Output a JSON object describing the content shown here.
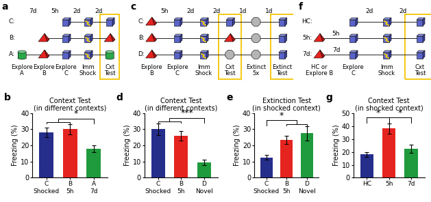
{
  "diagrams": [
    {
      "panel": "a",
      "rows": [
        {
          "label": "C:"
        },
        {
          "label": "B:"
        },
        {
          "label": "A:"
        }
      ],
      "intervals": [
        "7d",
        "5h",
        "2d",
        "2d"
      ],
      "steps": [
        "Explore\nA",
        "Explore\nB",
        "Explore\nC",
        "Imm\nShock",
        "Cxt\nTest"
      ]
    },
    {
      "panel": "c",
      "rows": [
        {
          "label": "C:"
        },
        {
          "label": "B:"
        },
        {
          "label": "D:"
        }
      ],
      "intervals": [
        "5h",
        "2d",
        "2d",
        "1d",
        "1d"
      ],
      "steps": [
        "Explore\nB",
        "Explore\nC",
        "Imm\nShock",
        "Cxt\nTest",
        "Extinct\n5x",
        "Extinct\nTest"
      ]
    },
    {
      "panel": "f",
      "rows": [
        {
          "label": "HC:"
        },
        {
          "label": "5h:",
          "interval": "5h"
        },
        {
          "label": "7d:",
          "interval": "7d"
        }
      ],
      "intervals": [
        "2d",
        "2d"
      ],
      "steps": [
        "HC or\nExplore B",
        "Explore\nC",
        "Imm\nShock",
        "Cxt\nTest"
      ]
    }
  ],
  "chart_data": [
    {
      "panel": "b",
      "type": "bar",
      "title": "Context Test",
      "subtitle": "(in different contexts)",
      "y_label": "Freezing (%)",
      "categories": [
        "C\nShocked",
        "B\n5h",
        "A\n7d"
      ],
      "values": [
        28,
        30,
        18
      ],
      "errors": [
        3,
        3,
        2
      ],
      "colors": [
        "#262e8c",
        "#e52420",
        "#1f9a3c"
      ],
      "ylim": [
        0,
        40
      ],
      "yticks": [
        0,
        10,
        20,
        30,
        40
      ],
      "significance": [
        {
          "text": "*",
          "left": [
            "C\nShocked",
            "B\n5h"
          ],
          "right": [
            "A\n7d"
          ]
        }
      ]
    },
    {
      "panel": "d",
      "type": "bar",
      "title": "Context Test",
      "subtitle": "(in different contexts)",
      "y_label": "Freezing (%)",
      "categories": [
        "C\nShocked",
        "B\n5h",
        "D\nNovel"
      ],
      "values": [
        30,
        26,
        9.5
      ],
      "errors": [
        3.5,
        3,
        1.5
      ],
      "colors": [
        "#262e8c",
        "#e52420",
        "#1f9a3c"
      ],
      "ylim": [
        0,
        40
      ],
      "yticks": [
        0,
        10,
        20,
        30,
        40
      ],
      "significance": [
        {
          "text": "***",
          "left": [
            "C\nShocked",
            "B\n5h"
          ],
          "right": [
            "D\nNovel"
          ]
        }
      ]
    },
    {
      "panel": "e",
      "type": "bar",
      "title": "Extinction Test",
      "subtitle": "(in shocked context)",
      "y_label": "Freezing (%)",
      "categories": [
        "C\nShocked",
        "B\n5h",
        "D\nNovel"
      ],
      "values": [
        12.5,
        23.5,
        27.5
      ],
      "errors": [
        1.5,
        2.5,
        4.5
      ],
      "colors": [
        "#262e8c",
        "#e52420",
        "#1f9a3c"
      ],
      "ylim": [
        0,
        40
      ],
      "yticks": [
        0,
        10,
        20,
        30,
        40
      ],
      "significance": [
        {
          "text": "*",
          "left": [
            "C\nShocked"
          ],
          "right": [
            "B\n5h",
            "D\nNovel"
          ]
        }
      ]
    },
    {
      "panel": "g",
      "type": "bar",
      "title": "Context Test",
      "subtitle": "(in shocked context)",
      "y_label": "Freezing (%)",
      "categories": [
        "HC",
        "5h",
        "7d"
      ],
      "values": [
        18,
        38,
        22.5
      ],
      "errors": [
        2,
        4,
        3
      ],
      "colors": [
        "#262e8c",
        "#e52420",
        "#1f9a3c"
      ],
      "ylim": [
        0,
        50
      ],
      "yticks": [
        0,
        10,
        20,
        30,
        40,
        50
      ],
      "significance": [
        {
          "text": "*",
          "left": [
            "HC"
          ],
          "right": [
            "5h"
          ]
        },
        {
          "text": "*",
          "left": [
            "5h"
          ],
          "right": [
            "7d"
          ]
        }
      ]
    }
  ]
}
